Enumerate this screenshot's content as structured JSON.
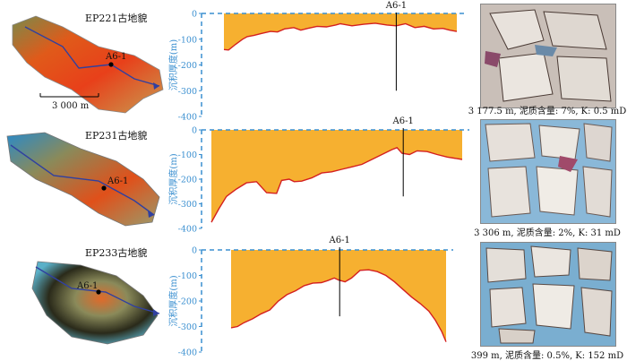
{
  "panels": [
    {
      "map_title": "EP221古地貌",
      "well_label": "A6-1",
      "scalebar_label": "3 000 m",
      "caption": "3 177.5 m, 泥质含量: 7%, K: 0.5 mD"
    },
    {
      "map_title": "EP231古地貌",
      "well_label": "A6-1",
      "caption": "3 306 m, 泥质含量: 2%, K: 31 mD"
    },
    {
      "map_title": "EP233古地貌",
      "well_label": "A6-1",
      "caption": "399 m, 泥质含量: 0.5%, K: 152 mD"
    }
  ],
  "colors": {
    "fill": "#f6b030",
    "line": "#d42020",
    "axis": "#3a8fd0",
    "well_marker": "#000000"
  },
  "chart_data": [
    {
      "type": "area",
      "ylabel": "沉积厚度(m)",
      "ylim": [
        0,
        -400
      ],
      "yticks": [
        0,
        -100,
        -200,
        -300,
        -400
      ],
      "x_range": [
        0,
        1
      ],
      "annotation": {
        "label": "A6-1",
        "x": 0.74
      },
      "x": [
        0,
        0.02,
        0.05,
        0.08,
        0.1,
        0.13,
        0.16,
        0.2,
        0.23,
        0.26,
        0.3,
        0.33,
        0.36,
        0.4,
        0.44,
        0.48,
        0.5,
        0.55,
        0.6,
        0.65,
        0.7,
        0.74,
        0.78,
        0.82,
        0.86,
        0.9,
        0.94,
        0.97,
        1.0
      ],
      "y": [
        -140,
        -142,
        -120,
        -100,
        -90,
        -85,
        -78,
        -70,
        -72,
        -60,
        -55,
        -65,
        -58,
        -50,
        -52,
        -45,
        -40,
        -48,
        -42,
        -38,
        -45,
        -48,
        -40,
        -55,
        -50,
        -60,
        -58,
        -65,
        -70
      ]
    },
    {
      "type": "area",
      "ylabel": "沉积厚度(m)",
      "ylim": [
        0,
        -400
      ],
      "yticks": [
        0,
        -100,
        -200,
        -300,
        -400
      ],
      "x_range": [
        0,
        1
      ],
      "annotation": {
        "label": "A6-1",
        "x": 0.765
      },
      "x": [
        0,
        0.03,
        0.06,
        0.1,
        0.14,
        0.18,
        0.22,
        0.26,
        0.28,
        0.31,
        0.33,
        0.36,
        0.4,
        0.44,
        0.48,
        0.52,
        0.56,
        0.6,
        0.64,
        0.68,
        0.72,
        0.74,
        0.76,
        0.79,
        0.82,
        0.86,
        0.9,
        0.94,
        1.0
      ],
      "y": [
        -375,
        -320,
        -270,
        -240,
        -215,
        -210,
        -255,
        -258,
        -205,
        -200,
        -210,
        -208,
        -195,
        -175,
        -170,
        -160,
        -150,
        -140,
        -120,
        -100,
        -80,
        -72,
        -95,
        -100,
        -85,
        -88,
        -100,
        -110,
        -120
      ]
    },
    {
      "type": "area",
      "ylabel": "沉积厚度(m)",
      "ylim": [
        0,
        -400
      ],
      "yticks": [
        0,
        -100,
        -200,
        -300,
        -400
      ],
      "x_range": [
        0,
        1
      ],
      "annotation": {
        "label": "A6-1",
        "x": 0.505
      },
      "x": [
        0,
        0.03,
        0.06,
        0.1,
        0.14,
        0.18,
        0.22,
        0.26,
        0.3,
        0.34,
        0.38,
        0.42,
        0.45,
        0.48,
        0.5,
        0.53,
        0.56,
        0.6,
        0.64,
        0.68,
        0.72,
        0.76,
        0.8,
        0.84,
        0.88,
        0.92,
        0.95,
        0.98,
        1.0
      ],
      "y": [
        -305,
        -300,
        -285,
        -270,
        -250,
        -235,
        -200,
        -175,
        -160,
        -140,
        -130,
        -128,
        -120,
        -110,
        -118,
        -125,
        -110,
        -80,
        -78,
        -85,
        -100,
        -125,
        -155,
        -185,
        -210,
        -240,
        -275,
        -320,
        -360
      ]
    }
  ]
}
